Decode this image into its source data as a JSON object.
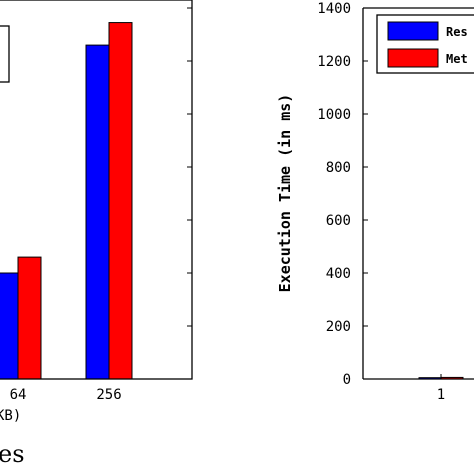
{
  "chart_data": [
    {
      "type": "bar",
      "categories": [
        "64",
        "256"
      ],
      "series": [
        {
          "values": [
            400,
            1260
          ]
        },
        {
          "values": [
            460,
            1345
          ]
        }
      ],
      "xlabel": "KB)",
      "ylim": [
        0,
        1400
      ],
      "grid": false,
      "legend": {
        "placement": "top-left",
        "visible_entries": []
      }
    },
    {
      "type": "bar",
      "categories": [
        "1"
      ],
      "series": [
        {
          "name": "Res",
          "values": [
            5
          ]
        },
        {
          "name": "Met",
          "values": [
            6
          ]
        }
      ],
      "ylabel": "Execution Time (in ms)",
      "ylim": [
        0,
        1400
      ],
      "yticks": [
        "0",
        "200",
        "400",
        "600",
        "800",
        "1000",
        "1200",
        "1400"
      ],
      "grid": false,
      "legend": {
        "placement": "top-right"
      }
    }
  ],
  "caption_fragment": "es",
  "colors": {
    "series_blue": "#0000ff",
    "series_red": "#ff0000",
    "axis": "#000000"
  }
}
